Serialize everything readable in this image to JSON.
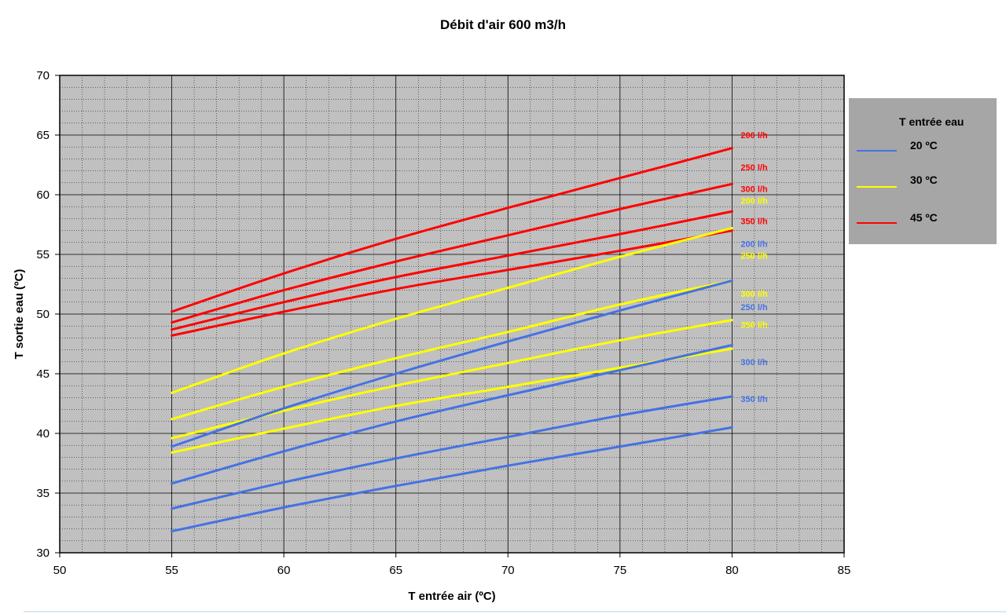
{
  "chart_data": {
    "type": "line",
    "title": "Débit d'air 600 m3/h",
    "xlabel": "T entrée air (ºC)",
    "ylabel": "T sortie eau (ºC)",
    "xlim": [
      50,
      85
    ],
    "ylim": [
      30,
      70
    ],
    "x_ticks": [
      "50",
      "55",
      "60",
      "65",
      "70",
      "75",
      "80",
      "85"
    ],
    "y_ticks": [
      "30",
      "35",
      "40",
      "45",
      "50",
      "55",
      "60",
      "65",
      "70"
    ],
    "grid": true,
    "plot_background": "#c0c0c0",
    "legend": {
      "title": "T entrée eau",
      "placement": "right",
      "background": "#a6a6a6",
      "items": [
        {
          "label": "20 ºC",
          "color": "#4472e4"
        },
        {
          "label": "30 ºC",
          "color": "#ffff00"
        },
        {
          "label": "45 ºC",
          "color": "#ff0000"
        }
      ]
    },
    "x": [
      55,
      60,
      65,
      70,
      75,
      80
    ],
    "series": [
      {
        "group": "45 ºC",
        "flow": "200 l/h",
        "color": "#ff0000",
        "values": [
          50.2,
          53.4,
          56.3,
          58.9,
          61.4,
          63.9
        ]
      },
      {
        "group": "45 ºC",
        "flow": "250 l/h",
        "color": "#ff0000",
        "values": [
          49.3,
          52.0,
          54.4,
          56.6,
          58.8,
          60.9
        ]
      },
      {
        "group": "45 ºC",
        "flow": "300 l/h",
        "color": "#ff0000",
        "values": [
          48.7,
          51.0,
          53.1,
          54.9,
          56.7,
          58.6
        ]
      },
      {
        "group": "45 ºC",
        "flow": "350 l/h",
        "color": "#ff0000",
        "values": [
          48.2,
          50.2,
          52.1,
          53.7,
          55.3,
          57.0
        ]
      },
      {
        "group": "30 ºC",
        "flow": "200 l/h",
        "color": "#ffff00",
        "values": [
          43.4,
          46.7,
          49.6,
          52.2,
          54.8,
          57.2
        ]
      },
      {
        "group": "30 ºC",
        "flow": "250 l/h",
        "color": "#ffff00",
        "values": [
          41.2,
          43.9,
          46.3,
          48.5,
          50.8,
          52.8
        ]
      },
      {
        "group": "30 ºC",
        "flow": "300 l/h",
        "color": "#ffff00",
        "values": [
          39.6,
          41.9,
          44.0,
          45.9,
          47.8,
          49.5
        ]
      },
      {
        "group": "30 ºC",
        "flow": "350 l/h",
        "color": "#ffff00",
        "values": [
          38.4,
          40.4,
          42.3,
          43.9,
          45.5,
          47.1
        ]
      },
      {
        "group": "20 ºC",
        "flow": "200 l/h",
        "color": "#4472e4",
        "values": [
          38.9,
          42.1,
          45.0,
          47.7,
          50.3,
          52.8
        ]
      },
      {
        "group": "20 ºC",
        "flow": "250 l/h",
        "color": "#4472e4",
        "values": [
          35.8,
          38.5,
          41.0,
          43.2,
          45.3,
          47.4
        ]
      },
      {
        "group": "20 ºC",
        "flow": "300 l/h",
        "color": "#4472e4",
        "values": [
          33.7,
          35.9,
          37.9,
          39.7,
          41.5,
          43.1
        ]
      },
      {
        "group": "20 ºC",
        "flow": "350 l/h",
        "color": "#4472e4",
        "values": [
          31.8,
          33.8,
          35.6,
          37.3,
          38.9,
          40.5
        ]
      }
    ],
    "end_labels": [
      {
        "text": "200 l/h",
        "color": "#ff0000",
        "y": 65.0
      },
      {
        "text": "250 l/h",
        "color": "#ff0000",
        "y": 62.3
      },
      {
        "text": "300 l/h",
        "color": "#ff0000",
        "y": 60.5
      },
      {
        "text": "200 l/h",
        "color": "#ffff00",
        "y": 59.5
      },
      {
        "text": "350 l/h",
        "color": "#ff0000",
        "y": 57.8
      },
      {
        "text": "200 l/h",
        "color": "#4472e4",
        "y": 55.9
      },
      {
        "text": "250 l/h",
        "color": "#ffff00",
        "y": 54.9
      },
      {
        "text": "300 l/h",
        "color": "#ffff00",
        "y": 51.7
      },
      {
        "text": "250 l/h",
        "color": "#4472e4",
        "y": 50.6
      },
      {
        "text": "350 l/h",
        "color": "#ffff00",
        "y": 49.1
      },
      {
        "text": "300 l/h",
        "color": "#4472e4",
        "y": 46.0
      },
      {
        "text": "350 l/h",
        "color": "#4472e4",
        "y": 42.9
      }
    ]
  }
}
